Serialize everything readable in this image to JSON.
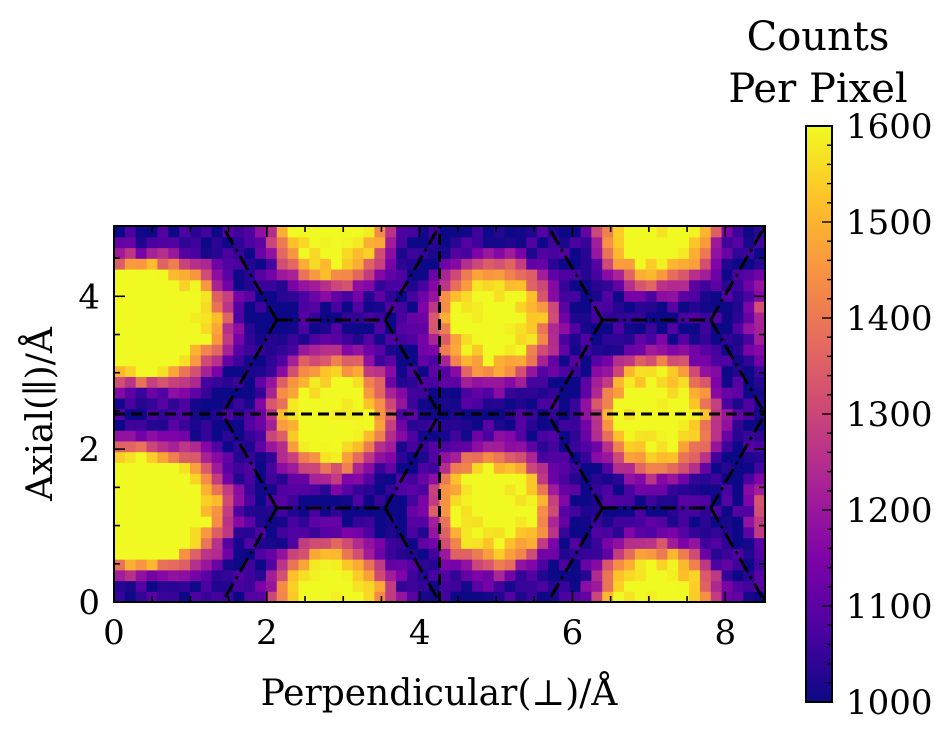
{
  "chart_data": {
    "type": "heatmap",
    "xlabel": "Perpendicular(⊥)/Å",
    "ylabel": "Axial(∥)/Å",
    "xlim": [
      0,
      8.52
    ],
    "ylim": [
      0,
      4.92
    ],
    "x_ticks": [
      {
        "value": 0,
        "label": "0"
      },
      {
        "value": 2,
        "label": "2"
      },
      {
        "value": 4,
        "label": "4"
      },
      {
        "value": 6,
        "label": "6"
      },
      {
        "value": 8,
        "label": "8"
      }
    ],
    "y_ticks": [
      {
        "value": 0,
        "label": "0"
      },
      {
        "value": 2,
        "label": "2"
      },
      {
        "value": 4,
        "label": "4"
      }
    ],
    "grid": false,
    "colormap": "plasma",
    "color_range": [
      1000,
      1600
    ],
    "colorbar": {
      "title_line1": "Counts",
      "title_line2": "Per Pixel",
      "ticks": [
        {
          "value": 1600,
          "label": "1600"
        },
        {
          "value": 1500,
          "label": "1500"
        },
        {
          "value": 1400,
          "label": "1400"
        },
        {
          "value": 1300,
          "label": "1300"
        },
        {
          "value": 1200,
          "label": "1200"
        },
        {
          "value": 1100,
          "label": "1100"
        },
        {
          "value": 1000,
          "label": "1000"
        }
      ]
    },
    "grid_bins": {
      "nx": 60,
      "ny": 35
    },
    "intensity": {
      "background": 1020,
      "peak": 1640,
      "radius": 0.82
    },
    "hotspots": [
      {
        "x": 0.0,
        "y": 1.23
      },
      {
        "x": 0.0,
        "y": 3.69
      },
      {
        "x": 0.71,
        "y": 1.23
      },
      {
        "x": 0.71,
        "y": 3.69
      },
      {
        "x": 2.84,
        "y": 0.0
      },
      {
        "x": 2.84,
        "y": 2.46
      },
      {
        "x": 2.84,
        "y": 4.92
      },
      {
        "x": 4.97,
        "y": 1.23
      },
      {
        "x": 4.97,
        "y": 3.69
      },
      {
        "x": 7.1,
        "y": 0.0
      },
      {
        "x": 7.1,
        "y": 2.46
      },
      {
        "x": 7.1,
        "y": 4.92
      },
      {
        "x": 9.23,
        "y": 1.23
      },
      {
        "x": 9.23,
        "y": 3.69
      }
    ],
    "dashed_lines": [
      {
        "x1": 0,
        "y1": 2.46,
        "x2": 8.52,
        "y2": 2.46
      },
      {
        "x1": 4.26,
        "y1": 0,
        "x2": 4.26,
        "y2": 4.92
      }
    ],
    "dashdot_segments": [
      [
        2.13,
        1.23,
        3.55,
        1.23
      ],
      [
        6.39,
        1.23,
        7.81,
        1.23
      ],
      [
        2.13,
        3.69,
        3.55,
        3.69
      ],
      [
        6.39,
        3.69,
        7.81,
        3.69
      ],
      [
        2.13,
        1.23,
        1.42,
        0.0
      ],
      [
        3.55,
        1.23,
        4.26,
        0.0
      ],
      [
        6.39,
        1.23,
        5.68,
        0.0
      ],
      [
        7.81,
        1.23,
        8.52,
        0.0
      ],
      [
        2.13,
        1.23,
        1.42,
        2.46
      ],
      [
        3.55,
        1.23,
        4.26,
        2.46
      ],
      [
        6.39,
        1.23,
        5.68,
        2.46
      ],
      [
        7.81,
        1.23,
        8.52,
        2.46
      ],
      [
        2.13,
        3.69,
        1.42,
        2.46
      ],
      [
        3.55,
        3.69,
        4.26,
        2.46
      ],
      [
        6.39,
        3.69,
        5.68,
        2.46
      ],
      [
        7.81,
        3.69,
        8.52,
        2.46
      ],
      [
        2.13,
        3.69,
        1.42,
        4.92
      ],
      [
        3.55,
        3.69,
        4.26,
        4.92
      ],
      [
        6.39,
        3.69,
        5.68,
        4.92
      ],
      [
        7.81,
        3.69,
        8.52,
        4.92
      ]
    ]
  }
}
